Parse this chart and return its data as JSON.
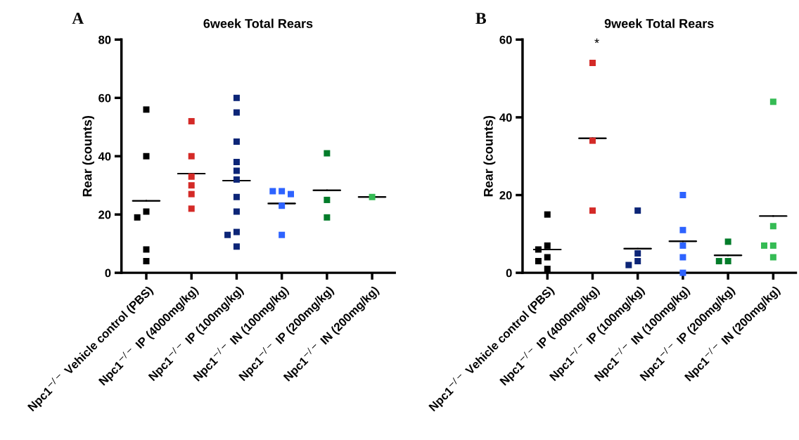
{
  "chart_data": [
    {
      "type": "scatter",
      "title": "6week Total Rears",
      "ylabel": "Rear (counts)",
      "annotations": [
        "A"
      ],
      "categories": [
        "Npc1$^{−/−}$ Vehicle control (PBS)",
        "Npc1$^{−/−}$ IP (4000mg/kg)",
        "Npc1$^{−/−}$ IP (100mg/kg)",
        "Npc1$^{−/−}$ IN (100mg/kg)",
        "Npc1$^{−/−}$ IP (200mg/kg)",
        "Npc1$^{−/−}$ IN (200mg/kg)"
      ],
      "ylim": [
        0,
        80
      ],
      "yticks": [
        0,
        20,
        40,
        60,
        80
      ],
      "grid": false,
      "legend": false,
      "marker": "square",
      "series": [
        {
          "color": "#000000",
          "x": [
            "Npc1$^{−/−}$ Vehicle control (PBS)",
            "Npc1$^{−/−}$ Vehicle control (PBS)",
            "Npc1$^{−/−}$ Vehicle control (PBS)",
            "Npc1$^{−/−}$ Vehicle control (PBS)",
            "Npc1$^{−/−}$ Vehicle control (PBS)",
            "Npc1$^{−/−}$ Vehicle control (PBS)"
          ],
          "values": [
            56,
            40,
            21,
            19,
            8,
            4
          ]
        },
        {
          "color": "#d42a27",
          "x": [
            "Npc1$^{−/−}$ IP (4000mg/kg)",
            "Npc1$^{−/−}$ IP (4000mg/kg)",
            "Npc1$^{−/−}$ IP (4000mg/kg)",
            "Npc1$^{−/−}$ IP (4000mg/kg)",
            "Npc1$^{−/−}$ IP (4000mg/kg)",
            "Npc1$^{−/−}$ IP (4000mg/kg)"
          ],
          "values": [
            52,
            40,
            33,
            30,
            27,
            22
          ]
        },
        {
          "color": "#0c2577",
          "x": [
            "Npc1$^{−/−}$ IP (100mg/kg)",
            "Npc1$^{−/−}$ IP (100mg/kg)",
            "Npc1$^{−/−}$ IP (100mg/kg)",
            "Npc1$^{−/−}$ IP (100mg/kg)",
            "Npc1$^{−/−}$ IP (100mg/kg)",
            "Npc1$^{−/−}$ IP (100mg/kg)",
            "Npc1$^{−/−}$ IP (100mg/kg)",
            "Npc1$^{−/−}$ IP (100mg/kg)",
            "Npc1$^{−/−}$ IP (100mg/kg)",
            "Npc1$^{−/−}$ IP (100mg/kg)",
            "Npc1$^{−/−}$ IP (100mg/kg)"
          ],
          "values": [
            60,
            55,
            45,
            38,
            35,
            32,
            26,
            21,
            14,
            13,
            9
          ]
        },
        {
          "color": "#2e63ff",
          "x": [
            "Npc1$^{−/−}$ IN (100mg/kg)",
            "Npc1$^{−/−}$ IN (100mg/kg)",
            "Npc1$^{−/−}$ IN (100mg/kg)",
            "Npc1$^{−/−}$ IN (100mg/kg)",
            "Npc1$^{−/−}$ IN (100mg/kg)"
          ],
          "values": [
            28,
            28,
            27,
            23,
            13
          ]
        },
        {
          "color": "#037c2a",
          "x": [
            "Npc1$^{−/−}$ IP (200mg/kg)",
            "Npc1$^{−/−}$ IP (200mg/kg)",
            "Npc1$^{−/−}$ IP (200mg/kg)"
          ],
          "values": [
            41,
            25,
            19
          ]
        },
        {
          "color": "#35bb54",
          "x": [
            "Npc1$^{−/−}$ IN (200mg/kg)"
          ],
          "values": [
            26
          ]
        },
        {
          "type": "box",
          "color": "#000000",
          "boxes": [
            {
              "low": 24.7,
              "q1": 24.7,
              "median": 24.7,
              "q3": 24.7,
              "high": 24.7
            },
            {
              "low": 34,
              "q1": 34,
              "median": 34,
              "q3": 34,
              "high": 34
            },
            {
              "low": 31.6,
              "q1": 31.6,
              "median": 31.6,
              "q3": 31.6,
              "high": 31.6
            },
            {
              "low": 23.8,
              "q1": 23.8,
              "median": 23.8,
              "q3": 23.8,
              "high": 23.8
            },
            {
              "low": 28.3,
              "q1": 28.3,
              "median": 28.3,
              "q3": 28.3,
              "high": 28.3
            },
            {
              "low": 26,
              "q1": 26,
              "median": 26,
              "q3": 26,
              "high": 26
            }
          ]
        }
      ]
    },
    {
      "type": "scatter",
      "title": "9week Total Rears",
      "ylabel": "Rear (counts)",
      "annotations": [
        "B",
        "*"
      ],
      "categories": [
        "Npc1$^{−/−}$ Vehicle control (PBS)",
        "Npc1$^{−/−}$ IP (4000mg/kg)",
        "Npc1$^{−/−}$ IP (100mg/kg)",
        "Npc1$^{−/−}$ IN (100mg/kg)",
        "Npc1$^{−/−}$ IP (200mg/kg)",
        "Npc1$^{−/−}$ IN (200mg/kg)"
      ],
      "ylim": [
        0,
        60
      ],
      "yticks": [
        0,
        20,
        40,
        60
      ],
      "grid": false,
      "legend": false,
      "marker": "square",
      "series": [
        {
          "color": "#000000",
          "x": [
            "Npc1$^{−/−}$ Vehicle control (PBS)",
            "Npc1$^{−/−}$ Vehicle control (PBS)",
            "Npc1$^{−/−}$ Vehicle control (PBS)",
            "Npc1$^{−/−}$ Vehicle control (PBS)",
            "Npc1$^{−/−}$ Vehicle control (PBS)",
            "Npc1$^{−/−}$ Vehicle control (PBS)"
          ],
          "values": [
            15,
            7,
            6,
            4,
            3,
            1
          ]
        },
        {
          "color": "#d42a27",
          "x": [
            "Npc1$^{−/−}$ IP (4000mg/kg)",
            "Npc1$^{−/−}$ IP (4000mg/kg)",
            "Npc1$^{−/−}$ IP (4000mg/kg)"
          ],
          "values": [
            54,
            34,
            16
          ]
        },
        {
          "color": "#0c2577",
          "x": [
            "Npc1$^{−/−}$ IP (100mg/kg)",
            "Npc1$^{−/−}$ IP (100mg/kg)",
            "Npc1$^{−/−}$ IP (100mg/kg)",
            "Npc1$^{−/−}$ IP (100mg/kg)"
          ],
          "values": [
            16,
            5,
            3,
            2
          ]
        },
        {
          "color": "#2e63ff",
          "x": [
            "Npc1$^{−/−}$ IN (100mg/kg)",
            "Npc1$^{−/−}$ IN (100mg/kg)",
            "Npc1$^{−/−}$ IN (100mg/kg)",
            "Npc1$^{−/−}$ IN (100mg/kg)",
            "Npc1$^{−/−}$ IN (100mg/kg)"
          ],
          "values": [
            20,
            11,
            7,
            4,
            0
          ]
        },
        {
          "color": "#037c2a",
          "x": [
            "Npc1$^{−/−}$ IP (200mg/kg)",
            "Npc1$^{−/−}$ IP (200mg/kg)",
            "Npc1$^{−/−}$ IP (200mg/kg)"
          ],
          "values": [
            8,
            3,
            3
          ]
        },
        {
          "color": "#35bb54",
          "x": [
            "Npc1$^{−/−}$ IN (200mg/kg)",
            "Npc1$^{−/−}$ IN (200mg/kg)",
            "Npc1$^{−/−}$ IN (200mg/kg)",
            "Npc1$^{−/−}$ IN (200mg/kg)",
            "Npc1$^{−/−}$ IN (200mg/kg)"
          ],
          "values": [
            44,
            12,
            7,
            7,
            4
          ]
        },
        {
          "type": "box",
          "color": "#000000",
          "boxes": [
            {
              "low": 6,
              "q1": 6,
              "median": 6,
              "q3": 6,
              "high": 6
            },
            {
              "low": 34.6,
              "q1": 34.6,
              "median": 34.6,
              "q3": 34.6,
              "high": 34.6
            },
            {
              "low": 6.2,
              "q1": 6.2,
              "median": 6.2,
              "q3": 6.2,
              "high": 6.2
            },
            {
              "low": 8.1,
              "q1": 8.1,
              "median": 8.1,
              "q3": 8.1,
              "high": 8.1
            },
            {
              "low": 4.5,
              "q1": 4.5,
              "median": 4.5,
              "q3": 4.5,
              "high": 4.5
            },
            {
              "low": 14.6,
              "q1": 14.6,
              "median": 14.6,
              "q3": 14.6,
              "high": 14.6
            }
          ]
        }
      ]
    }
  ]
}
